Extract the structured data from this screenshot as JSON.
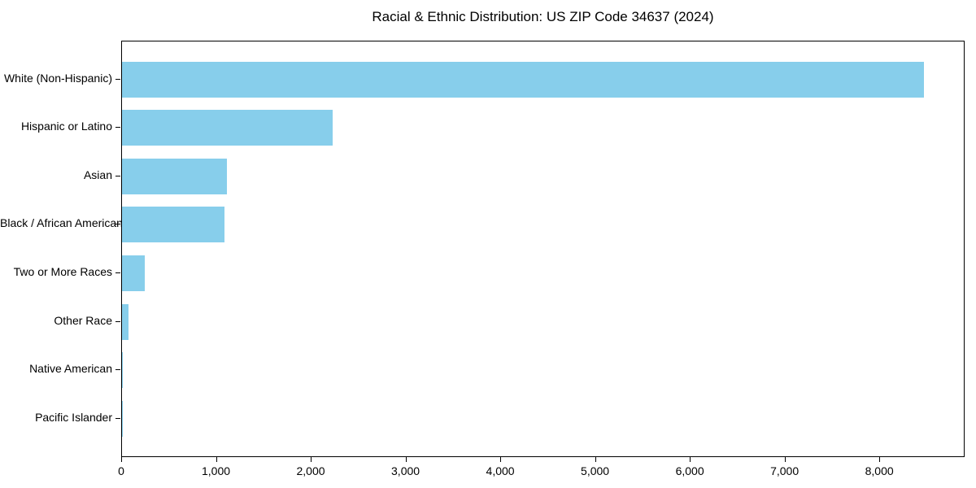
{
  "chart_data": {
    "type": "bar",
    "orientation": "horizontal",
    "title": "Racial & Ethnic Distribution: US ZIP Code 34637 (2024)",
    "categories": [
      "White (Non-Hispanic)",
      "Hispanic or Latino",
      "Asian",
      "Black / African American",
      "Two or More Races",
      "Other Race",
      "Native American",
      "Pacific Islander"
    ],
    "values": [
      8460,
      2220,
      1110,
      1080,
      240,
      65,
      10,
      2
    ],
    "xlabel": "",
    "ylabel": "",
    "xlim": [
      0,
      8900
    ],
    "xticks": [
      0,
      1000,
      2000,
      3000,
      4000,
      5000,
      6000,
      7000,
      8000
    ],
    "bar_color": "#87CEEB",
    "axis_color": "#000000",
    "background_color": "#ffffff",
    "grid": false,
    "legend": null
  }
}
